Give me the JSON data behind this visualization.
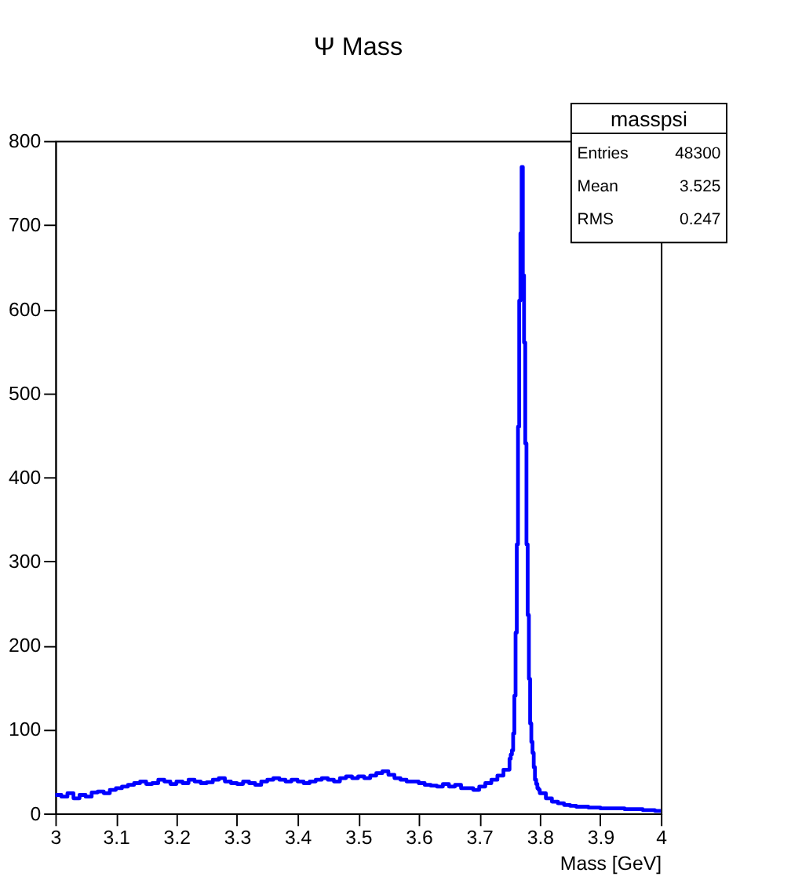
{
  "chart_data": {
    "type": "histogram",
    "title": "Ψ Mass",
    "xlabel": "Mass [GeV]",
    "annotations": [
      "masspsi",
      "Entries",
      "48300",
      "Mean",
      "3.525",
      "RMS",
      "0.247"
    ],
    "color": "#0000ff",
    "xlim": [
      3,
      4
    ],
    "ylim": [
      0,
      800
    ],
    "xticks": [
      3,
      3.1,
      3.2,
      3.3,
      3.4,
      3.5,
      3.6,
      3.7,
      3.8,
      3.9,
      4
    ],
    "yticks": [
      0,
      100,
      200,
      300,
      400,
      500,
      600,
      700,
      800
    ],
    "grid": false,
    "bins": [
      3.0,
      3.01,
      3.02,
      3.03,
      3.04,
      3.05,
      3.06,
      3.07,
      3.08,
      3.09,
      3.1,
      3.11,
      3.12,
      3.13,
      3.14,
      3.15,
      3.16,
      3.17,
      3.18,
      3.19,
      3.2,
      3.21,
      3.22,
      3.23,
      3.24,
      3.25,
      3.26,
      3.27,
      3.28,
      3.29,
      3.3,
      3.31,
      3.32,
      3.33,
      3.34,
      3.35,
      3.36,
      3.37,
      3.38,
      3.39,
      3.4,
      3.41,
      3.42,
      3.43,
      3.44,
      3.45,
      3.46,
      3.47,
      3.48,
      3.49,
      3.5,
      3.51,
      3.52,
      3.53,
      3.54,
      3.55,
      3.56,
      3.57,
      3.58,
      3.59,
      3.6,
      3.61,
      3.62,
      3.63,
      3.64,
      3.65,
      3.66,
      3.67,
      3.68,
      3.69,
      3.7,
      3.71,
      3.72,
      3.73,
      3.74,
      3.75,
      3.752,
      3.754,
      3.756,
      3.758,
      3.76,
      3.762,
      3.764,
      3.766,
      3.768,
      3.77,
      3.772,
      3.774,
      3.776,
      3.778,
      3.78,
      3.782,
      3.784,
      3.786,
      3.788,
      3.79,
      3.792,
      3.794,
      3.796,
      3.798,
      3.8,
      3.81,
      3.82,
      3.83,
      3.84,
      3.85,
      3.86,
      3.87,
      3.88,
      3.89,
      3.9,
      3.91,
      3.92,
      3.93,
      3.94,
      3.95,
      3.96,
      3.97,
      3.98,
      3.99,
      4.0
    ],
    "values": [
      22,
      20,
      24,
      18,
      22,
      20,
      25,
      26,
      24,
      28,
      30,
      32,
      34,
      36,
      38,
      35,
      36,
      40,
      38,
      35,
      38,
      36,
      40,
      38,
      36,
      37,
      40,
      42,
      38,
      36,
      35,
      38,
      36,
      34,
      38,
      40,
      42,
      40,
      38,
      40,
      38,
      36,
      38,
      40,
      42,
      40,
      38,
      42,
      44,
      42,
      44,
      42,
      45,
      48,
      50,
      46,
      42,
      40,
      38,
      38,
      36,
      34,
      33,
      32,
      35,
      32,
      34,
      30,
      30,
      28,
      32,
      36,
      40,
      45,
      52,
      65,
      70,
      75,
      95,
      140,
      215,
      320,
      460,
      610,
      690,
      769,
      640,
      560,
      440,
      320,
      236,
      160,
      107,
      85,
      72,
      55,
      40,
      35,
      30,
      28,
      24,
      18,
      14,
      12,
      10,
      9,
      8,
      8,
      7,
      7,
      6,
      6,
      6,
      6,
      5,
      5,
      5,
      4,
      4,
      3
    ]
  }
}
